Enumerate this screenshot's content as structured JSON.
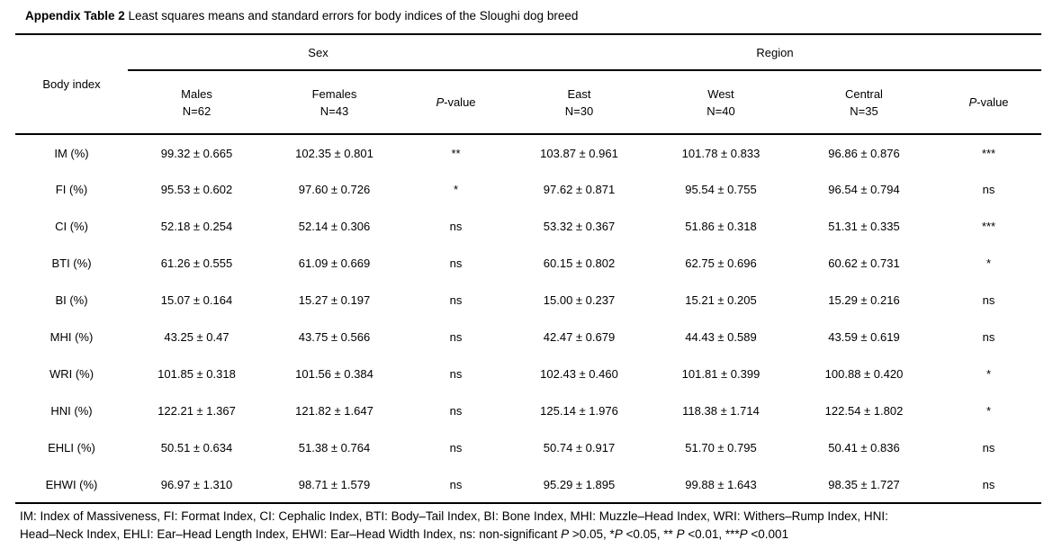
{
  "title_segments": [
    {
      "t": "Appendix Table 2",
      "b": true
    },
    {
      "t": " Least squares means and standard errors for body indices of the Sloughi dog breed"
    }
  ],
  "table": {
    "body_index_header": "Body index",
    "sex_group": {
      "label": "Sex",
      "cols": [
        {
          "name": "Males",
          "n": "N=62"
        },
        {
          "name": "Females",
          "n": "N=43"
        }
      ],
      "pvalue": [
        {
          "t": "P",
          "i": true
        },
        {
          "t": "-value"
        }
      ]
    },
    "region_group": {
      "label": "Region",
      "cols": [
        {
          "name": "East",
          "n": "N=30"
        },
        {
          "name": "West",
          "n": "N=40"
        },
        {
          "name": "Central",
          "n": "N=35"
        }
      ],
      "pvalue": [
        {
          "t": "P",
          "i": true
        },
        {
          "t": "-value"
        }
      ]
    },
    "rows": [
      [
        "IM (%)",
        "99.32 ± 0.665",
        "102.35 ± 0.801",
        "**",
        "103.87 ± 0.961",
        "101.78 ± 0.833",
        "96.86 ± 0.876",
        "***"
      ],
      [
        "FI (%)",
        "95.53 ± 0.602",
        "97.60 ± 0.726",
        "*",
        "97.62 ± 0.871",
        "95.54 ± 0.755",
        "96.54 ± 0.794",
        "ns"
      ],
      [
        "CI (%)",
        "52.18 ± 0.254",
        "52.14 ± 0.306",
        "ns",
        "53.32 ± 0.367",
        "51.86 ± 0.318",
        "51.31 ± 0.335",
        "***"
      ],
      [
        "BTI (%)",
        "61.26 ± 0.555",
        "61.09 ± 0.669",
        "ns",
        "60.15 ± 0.802",
        "62.75 ± 0.696",
        "60.62 ± 0.731",
        "*"
      ],
      [
        "BI (%)",
        "15.07 ± 0.164",
        "15.27 ± 0.197",
        "ns",
        "15.00 ± 0.237",
        "15.21 ± 0.205",
        "15.29 ± 0.216",
        "ns"
      ],
      [
        "MHI (%)",
        "43.25 ± 0.47",
        "43.75 ± 0.566",
        "ns",
        "42.47 ± 0.679",
        "44.43 ± 0.589",
        "43.59 ± 0.619",
        "ns"
      ],
      [
        "WRI (%)",
        "101.85 ± 0.318",
        "101.56 ± 0.384",
        "ns",
        "102.43 ± 0.460",
        "101.81 ± 0.399",
        "100.88 ± 0.420",
        "*"
      ],
      [
        "HNI (%)",
        "122.21 ± 1.367",
        "121.82 ± 1.647",
        "ns",
        "125.14 ± 1.976",
        "118.38 ± 1.714",
        "122.54 ± 1.802",
        "*"
      ],
      [
        "EHLI (%)",
        "50.51 ± 0.634",
        "51.38 ± 0.764",
        "ns",
        "50.74 ± 0.917",
        "51.70 ± 0.795",
        "50.41 ± 0.836",
        "ns"
      ],
      [
        "EHWI (%)",
        "96.97 ± 1.310",
        "98.71 ± 1.579",
        "ns",
        "95.29 ± 1.895",
        "99.88 ± 1.643",
        "98.35 ± 1.727",
        "ns"
      ]
    ]
  },
  "footnote": {
    "line1": "IM: Index of Massiveness, FI: Format Index, CI: Cephalic Index, BTI: Body–Tail Index, BI: Bone Index, MHI: Muzzle–Head Index, WRI: Withers–Rump Index, HNI:",
    "line2_segments": [
      {
        "t": "Head–Neck Index, EHLI: Ear–Head Length Index, EHWI: Ear–Head Width Index, ns: non-significant "
      },
      {
        "t": "P",
        "i": true
      },
      {
        "t": " >0.05, *"
      },
      {
        "t": "P",
        "i": true
      },
      {
        "t": " <0.05, ** "
      },
      {
        "t": "P",
        "i": true
      },
      {
        "t": " <0.01, ***"
      },
      {
        "t": "P",
        "i": true
      },
      {
        "t": " <0.001"
      }
    ]
  }
}
